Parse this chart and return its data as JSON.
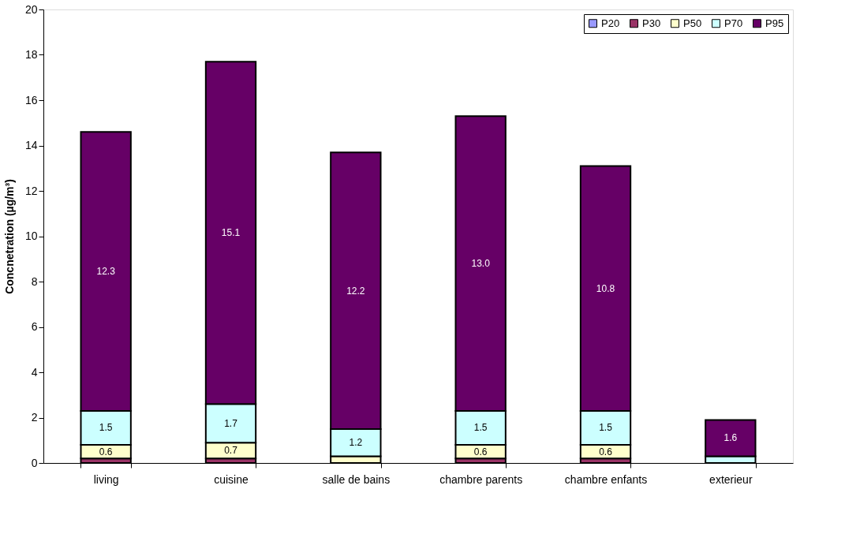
{
  "chart_data": {
    "type": "bar",
    "stacked": true,
    "ylabel": "Concnetration (µg/m³)",
    "categories": [
      "living",
      "cuisine",
      "salle de bains",
      "chambre parents",
      "chambre enfants",
      "exterieur"
    ],
    "ylim": [
      0,
      20
    ],
    "yticks": [
      0,
      2,
      4,
      6,
      8,
      10,
      12,
      14,
      16,
      18,
      20
    ],
    "grid": false,
    "legend": "top right",
    "series": [
      {
        "name": "P20",
        "color": "#9999ff",
        "values": [
          0.0,
          0.0,
          0.0,
          0.0,
          0.0,
          0.0
        ],
        "value_labels": [
          null,
          null,
          null,
          null,
          null,
          null
        ]
      },
      {
        "name": "P30",
        "color": "#993366",
        "values": [
          0.2,
          0.2,
          0.0,
          0.2,
          0.2,
          0.0
        ],
        "value_labels": [
          null,
          null,
          null,
          null,
          null,
          null
        ]
      },
      {
        "name": "P50",
        "color": "#ffffcc",
        "values": [
          0.6,
          0.7,
          0.3,
          0.6,
          0.6,
          0.0
        ],
        "value_labels": [
          "0.6",
          "0.7",
          null,
          "0.6",
          "0.6",
          null
        ]
      },
      {
        "name": "P70",
        "color": "#ccffff",
        "values": [
          1.5,
          1.7,
          1.2,
          1.5,
          1.5,
          0.3
        ],
        "value_labels": [
          "1.5",
          "1.7",
          "1.2",
          "1.5",
          "1.5",
          null
        ]
      },
      {
        "name": "P95",
        "color": "#660066",
        "values": [
          12.3,
          15.1,
          12.2,
          13.0,
          10.8,
          1.6
        ],
        "value_labels": [
          "12.3",
          "15.1",
          "12.2",
          "13.0",
          "10.8",
          "1.6"
        ]
      }
    ]
  }
}
